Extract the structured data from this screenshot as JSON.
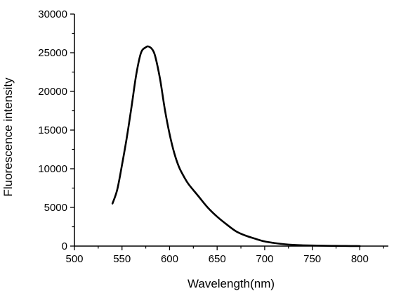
{
  "chart_data": {
    "type": "line",
    "xlabel": "Wavelength(nm)",
    "ylabel": "Fluorescence intensity",
    "xlim": [
      500,
      830
    ],
    "ylim": [
      0,
      30000
    ],
    "x_ticks": [
      500,
      550,
      600,
      650,
      700,
      750,
      800
    ],
    "y_ticks": [
      0,
      5000,
      10000,
      15000,
      20000,
      25000,
      30000
    ],
    "grid": false,
    "line_color": "#000000",
    "series": [
      {
        "x": [
          540,
          545,
          550,
          555,
          560,
          565,
          570,
          575,
          578,
          582,
          585,
          590,
          595,
          600,
          605,
          610,
          615,
          620,
          630,
          640,
          650,
          660,
          670,
          680,
          690,
          700,
          710,
          720,
          730,
          740,
          750,
          760,
          770,
          780,
          790,
          800
        ],
        "y": [
          5500,
          7300,
          10500,
          14000,
          18000,
          22200,
          25000,
          25700,
          25800,
          25400,
          24500,
          21600,
          17700,
          14500,
          12000,
          10200,
          9000,
          8000,
          6500,
          5000,
          3800,
          2800,
          1900,
          1350,
          950,
          600,
          400,
          250,
          150,
          100,
          70,
          50,
          30,
          20,
          10,
          0
        ]
      }
    ]
  }
}
